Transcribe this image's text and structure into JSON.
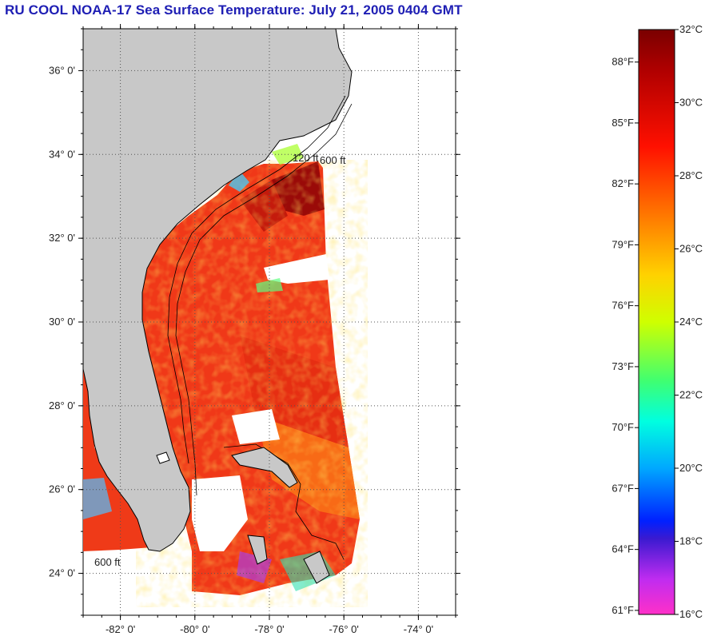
{
  "title": "RU COOL  NOAA-17  Sea Surface Temperature:  July 21, 2005 0404 GMT",
  "map": {
    "lat_labels": [
      {
        "label": "36° 0'",
        "value": 36
      },
      {
        "label": "34° 0'",
        "value": 34
      },
      {
        "label": "32° 0'",
        "value": 32
      },
      {
        "label": "30° 0'",
        "value": 30
      },
      {
        "label": "28° 0'",
        "value": 28
      },
      {
        "label": "26° 0'",
        "value": 26
      },
      {
        "label": "24° 0'",
        "value": 24
      }
    ],
    "lon_labels": [
      {
        "label": "-82° 0'",
        "value": -82
      },
      {
        "label": "-80° 0'",
        "value": -80
      },
      {
        "label": "-78° 0'",
        "value": -78
      },
      {
        "label": "-76° 0'",
        "value": -76
      },
      {
        "label": "-74° 0'",
        "value": -74
      }
    ],
    "lat_range": [
      23,
      37
    ],
    "lon_range": [
      -83,
      -73
    ],
    "grid": true,
    "land_color": "#c8c8c8",
    "contour_labels": [
      "600 ft",
      "120 ft"
    ]
  },
  "colorbar": {
    "celsius": [
      "32°C",
      "30°C",
      "28°C",
      "26°C",
      "24°C",
      "22°C",
      "20°C",
      "18°C",
      "16°C"
    ],
    "fahrenheit": [
      "88°F",
      "85°F",
      "82°F",
      "79°F",
      "76°F",
      "73°F",
      "70°F",
      "67°F",
      "64°F",
      "61°F"
    ],
    "fahrenheit_values": [
      88,
      85,
      82,
      79,
      76,
      73,
      70,
      67,
      64,
      61
    ],
    "celsius_values": [
      32,
      30,
      28,
      26,
      24,
      22,
      20,
      18,
      16
    ]
  }
}
